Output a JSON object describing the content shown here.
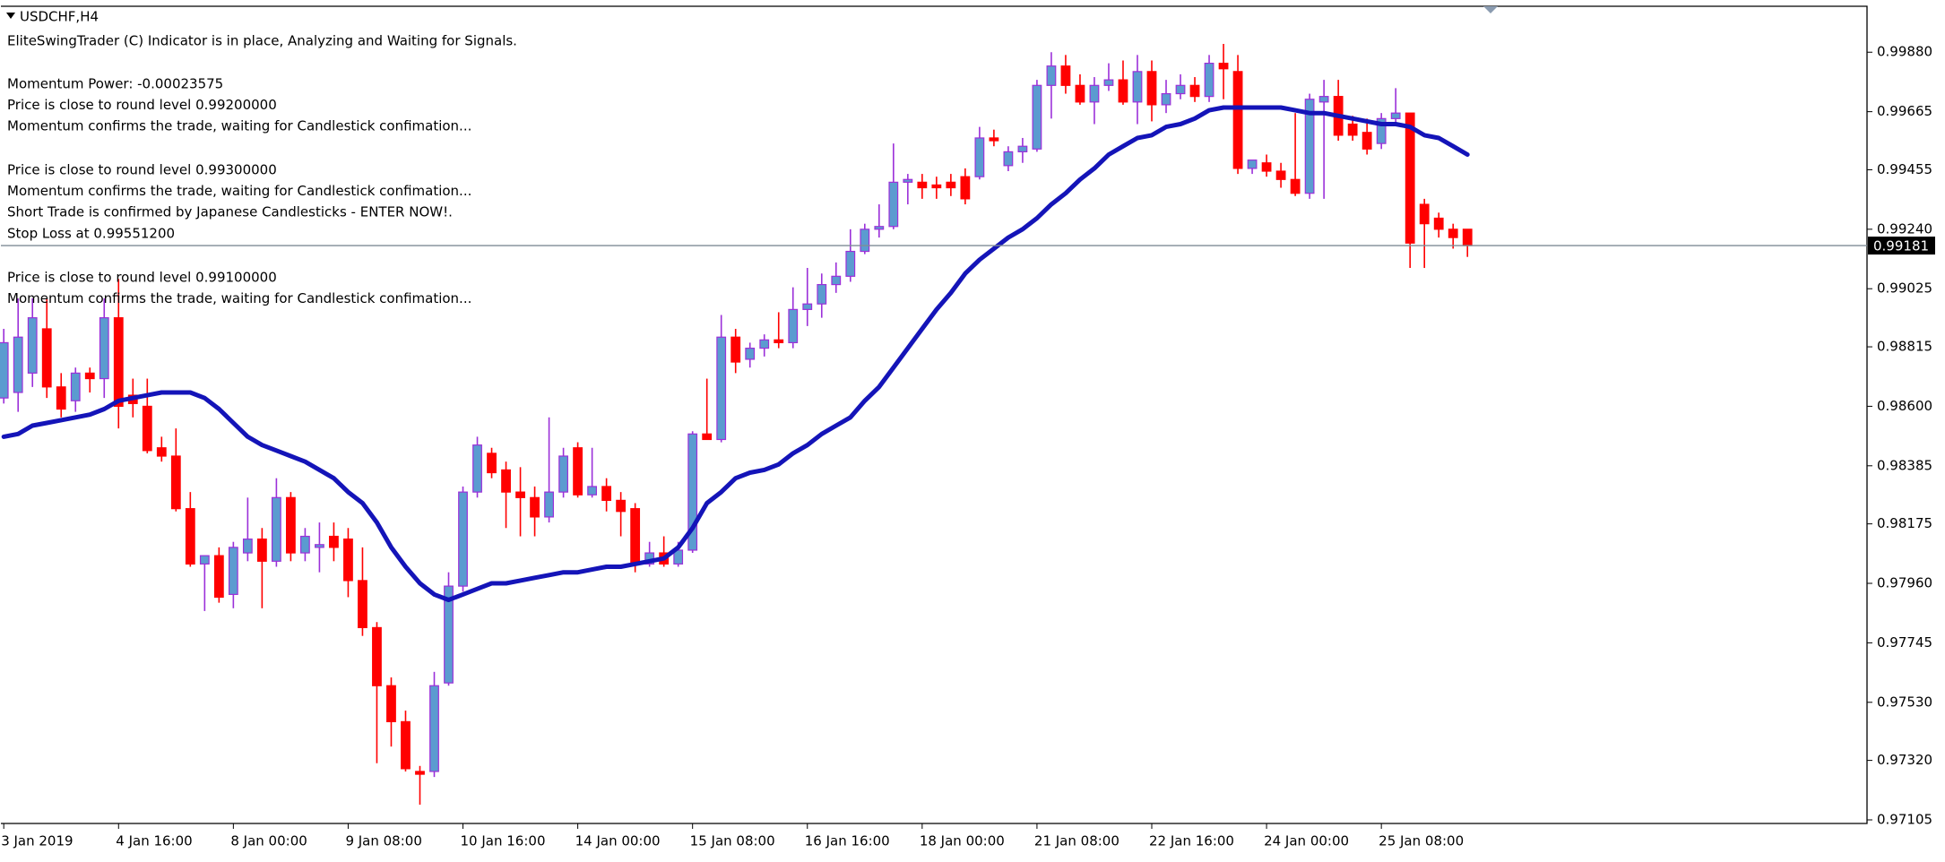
{
  "chart_data": {
    "type": "candlestick",
    "symbol": "USDCHF,H4",
    "messages": [
      [
        "EliteSwingTrader (C) Indicator is in place, Analyzing and Waiting for Signals."
      ],
      [
        "Momentum Power: -0.00023575",
        "Price is close to round level 0.99200000",
        "Momentum confirms the trade, waiting for Candlestick confimation..."
      ],
      [
        "Price is close to round level 0.99300000",
        "Momentum confirms the trade, waiting for Candlestick confimation...",
        "Short Trade is confirmed by Japanese Candlesticks - ENTER NOW!.",
        "Stop Loss at 0.99551200"
      ],
      [
        "Price is close to round level 0.99100000",
        "Momentum confirms the trade, waiting for Candlestick confimation..."
      ]
    ],
    "open": [
      0.9863,
      0.9865,
      0.9872,
      0.9888,
      0.9867,
      0.9862,
      0.9872,
      0.987,
      0.9892,
      0.9864,
      0.986,
      0.9845,
      0.9842,
      0.9823,
      0.9803,
      0.9806,
      0.9792,
      0.9807,
      0.9812,
      0.9804,
      0.9827,
      0.9807,
      0.9809,
      0.9813,
      0.9812,
      0.9797,
      0.978,
      0.9759,
      0.9746,
      0.9728,
      0.9728,
      0.976,
      0.9795,
      0.9829,
      0.9843,
      0.9837,
      0.9829,
      0.9827,
      0.982,
      0.9829,
      0.9845,
      0.9828,
      0.9831,
      0.9826,
      0.9823,
      0.9803,
      0.9807,
      0.9803,
      0.9808,
      0.985,
      0.9848,
      0.9885,
      0.9877,
      0.9881,
      0.9884,
      0.9883,
      0.9895,
      0.9897,
      0.9904,
      0.9907,
      0.9916,
      0.9924,
      0.9925,
      0.9941,
      0.9941,
      0.994,
      0.9941,
      0.9943,
      0.9943,
      0.9957,
      0.9947,
      0.9952,
      0.9953,
      0.9976,
      0.9983,
      0.9976,
      0.997,
      0.9976,
      0.9978,
      0.997,
      0.9981,
      0.9969,
      0.9973,
      0.9976,
      0.9972,
      0.9984,
      0.9981,
      0.9946,
      0.9948,
      0.9945,
      0.9942,
      0.9937,
      0.997,
      0.9972,
      0.9962,
      0.9959,
      0.9955,
      0.9964,
      0.9966,
      0.9933,
      0.9928,
      0.9924,
      0.9924
    ],
    "high": [
      0.9888,
      0.9899,
      0.9899,
      0.9899,
      0.9872,
      0.9874,
      0.9874,
      0.9899,
      0.9906,
      0.987,
      0.987,
      0.9849,
      0.9852,
      0.9829,
      0.9806,
      0.9809,
      0.9811,
      0.9827,
      0.9816,
      0.9834,
      0.9829,
      0.9816,
      0.9818,
      0.9818,
      0.9816,
      0.9809,
      0.9782,
      0.9762,
      0.975,
      0.973,
      0.9764,
      0.98,
      0.9831,
      0.9849,
      0.9845,
      0.984,
      0.9838,
      0.9831,
      0.9856,
      0.9845,
      0.9847,
      0.9845,
      0.9834,
      0.9829,
      0.9825,
      0.9811,
      0.9813,
      0.9811,
      0.9851,
      0.987,
      0.9893,
      0.9888,
      0.9883,
      0.9886,
      0.9894,
      0.9903,
      0.991,
      0.9908,
      0.9912,
      0.9924,
      0.9926,
      0.9933,
      0.9955,
      0.9944,
      0.9944,
      0.9943,
      0.9944,
      0.9946,
      0.9961,
      0.996,
      0.9954,
      0.9957,
      0.9978,
      0.9988,
      0.9987,
      0.998,
      0.9979,
      0.9984,
      0.9985,
      0.9987,
      0.9985,
      0.9978,
      0.998,
      0.9979,
      0.9987,
      0.9991,
      0.9987,
      0.9949,
      0.9951,
      0.9948,
      0.9966,
      0.9973,
      0.9978,
      0.9978,
      0.9965,
      0.9964,
      0.9966,
      0.9975,
      0.9966,
      0.9935,
      0.993,
      0.9926,
      0.9924
    ],
    "low": [
      0.9861,
      0.9858,
      0.9867,
      0.9863,
      0.9856,
      0.9858,
      0.9865,
      0.9863,
      0.9852,
      0.9856,
      0.9843,
      0.984,
      0.9822,
      0.9802,
      0.9786,
      0.9789,
      0.9787,
      0.9804,
      0.9787,
      0.9802,
      0.9804,
      0.9804,
      0.98,
      0.9804,
      0.9791,
      0.9777,
      0.9731,
      0.9737,
      0.9728,
      0.9716,
      0.9726,
      0.9759,
      0.9793,
      0.9827,
      0.9834,
      0.9816,
      0.9813,
      0.9813,
      0.9818,
      0.9827,
      0.9827,
      0.9827,
      0.9822,
      0.9813,
      0.98,
      0.9802,
      0.9802,
      0.9802,
      0.9807,
      0.9848,
      0.9847,
      0.9872,
      0.9874,
      0.9878,
      0.9881,
      0.9881,
      0.9889,
      0.9892,
      0.9901,
      0.9905,
      0.9915,
      0.9921,
      0.9924,
      0.9933,
      0.9935,
      0.9935,
      0.9936,
      0.9933,
      0.9942,
      0.9954,
      0.9945,
      0.9948,
      0.9952,
      0.9964,
      0.9973,
      0.9969,
      0.9962,
      0.9974,
      0.9969,
      0.9962,
      0.9963,
      0.9966,
      0.9971,
      0.997,
      0.997,
      0.9971,
      0.9944,
      0.9944,
      0.9943,
      0.9939,
      0.9936,
      0.9935,
      0.9935,
      0.9956,
      0.9956,
      0.9951,
      0.9953,
      0.9962,
      0.991,
      0.991,
      0.9921,
      0.9917,
      0.9914
    ],
    "close": [
      0.9883,
      0.9885,
      0.9892,
      0.9867,
      0.9859,
      0.9872,
      0.987,
      0.9892,
      0.986,
      0.9861,
      0.9844,
      0.9842,
      0.9823,
      0.9803,
      0.9806,
      0.9791,
      0.9809,
      0.9812,
      0.9804,
      0.9827,
      0.9807,
      0.9813,
      0.981,
      0.9809,
      0.9797,
      0.978,
      0.9759,
      0.9746,
      0.9729,
      0.9727,
      0.9759,
      0.9795,
      0.9829,
      0.9846,
      0.9836,
      0.9829,
      0.9827,
      0.982,
      0.9829,
      0.9842,
      0.9828,
      0.9831,
      0.9826,
      0.9822,
      0.9803,
      0.9807,
      0.9803,
      0.9808,
      0.985,
      0.9848,
      0.9885,
      0.9876,
      0.9881,
      0.9884,
      0.9883,
      0.9895,
      0.9897,
      0.9904,
      0.9907,
      0.9916,
      0.9924,
      0.9925,
      0.9941,
      0.9942,
      0.9939,
      0.9939,
      0.9939,
      0.9935,
      0.9957,
      0.9956,
      0.9952,
      0.9954,
      0.9976,
      0.9983,
      0.9976,
      0.997,
      0.9976,
      0.9978,
      0.997,
      0.9981,
      0.9969,
      0.9973,
      0.9976,
      0.9972,
      0.9984,
      0.9982,
      0.9946,
      0.9949,
      0.9945,
      0.9942,
      0.9937,
      0.9971,
      0.9972,
      0.9958,
      0.9958,
      0.9953,
      0.9964,
      0.9966,
      0.9919,
      0.9926,
      0.9924,
      0.9921,
      0.99181
    ],
    "ma": [
      0.9849,
      0.985,
      0.9853,
      0.9854,
      0.9855,
      0.9856,
      0.9857,
      0.9859,
      0.9862,
      0.9863,
      0.9864,
      0.9865,
      0.9865,
      0.9865,
      0.9863,
      0.9859,
      0.9854,
      0.9849,
      0.9846,
      0.9844,
      0.9842,
      0.984,
      0.9837,
      0.9834,
      0.9829,
      0.9825,
      0.9818,
      0.9809,
      0.9802,
      0.9796,
      0.9792,
      0.979,
      0.9792,
      0.9794,
      0.9796,
      0.9796,
      0.9797,
      0.9798,
      0.9799,
      0.98,
      0.98,
      0.9801,
      0.9802,
      0.9802,
      0.9803,
      0.9804,
      0.9805,
      0.9809,
      0.9816,
      0.9825,
      0.9829,
      0.9834,
      0.9836,
      0.9837,
      0.9839,
      0.9843,
      0.9846,
      0.985,
      0.9853,
      0.9856,
      0.9862,
      0.9867,
      0.9874,
      0.9881,
      0.9888,
      0.9895,
      0.9901,
      0.9908,
      0.9913,
      0.9917,
      0.9921,
      0.9924,
      0.9928,
      0.9933,
      0.9937,
      0.9942,
      0.9946,
      0.9951,
      0.9954,
      0.9957,
      0.9958,
      0.9961,
      0.9962,
      0.9964,
      0.9967,
      0.9968,
      0.9968,
      0.9968,
      0.9968,
      0.9968,
      0.9967,
      0.9966,
      0.9966,
      0.9965,
      0.9964,
      0.9963,
      0.9962,
      0.9962,
      0.9961,
      0.9958,
      0.9957,
      0.9954,
      0.9951
    ],
    "up_color": "#5b9bd0",
    "up_wick": "#9b30d9",
    "down_color": "#ff0000",
    "ma_color": "#1414b8",
    "bid": 0.99181,
    "ylim": [
      0.97092,
      1.00046
    ],
    "yticks": [
      {
        "value": 0.9988,
        "label": "0.99880"
      },
      {
        "value": 0.99665,
        "label": "0.99665"
      },
      {
        "value": 0.99455,
        "label": "0.99455"
      },
      {
        "value": 0.9924,
        "label": "0.99240"
      },
      {
        "value": 0.99025,
        "label": "0.99025"
      },
      {
        "value": 0.98815,
        "label": "0.98815"
      },
      {
        "value": 0.986,
        "label": "0.98600"
      },
      {
        "value": 0.98385,
        "label": "0.98385"
      },
      {
        "value": 0.98175,
        "label": "0.98175"
      },
      {
        "value": 0.9796,
        "label": "0.97960"
      },
      {
        "value": 0.97745,
        "label": "0.97745"
      },
      {
        "value": 0.9753,
        "label": "0.97530"
      },
      {
        "value": 0.9732,
        "label": "0.97320"
      },
      {
        "value": 0.97105,
        "label": "0.97105"
      }
    ],
    "xticks": [
      {
        "value": 0,
        "label": "3 Jan 2019"
      },
      {
        "value": 8,
        "label": "4 Jan 16:00"
      },
      {
        "value": 16,
        "label": "8 Jan 00:00"
      },
      {
        "value": 24,
        "label": "9 Jan 08:00"
      },
      {
        "value": 32,
        "label": "10 Jan 16:00"
      },
      {
        "value": 40,
        "label": "14 Jan 00:00"
      },
      {
        "value": 48,
        "label": "15 Jan 08:00"
      },
      {
        "value": 56,
        "label": "16 Jan 16:00"
      },
      {
        "value": 64,
        "label": "18 Jan 00:00"
      },
      {
        "value": 72,
        "label": "21 Jan 08:00"
      },
      {
        "value": 80,
        "label": "22 Jan 16:00"
      },
      {
        "value": 88,
        "label": "24 Jan 00:00"
      },
      {
        "value": 96,
        "label": "25 Jan 08:00"
      }
    ],
    "grid": false
  }
}
